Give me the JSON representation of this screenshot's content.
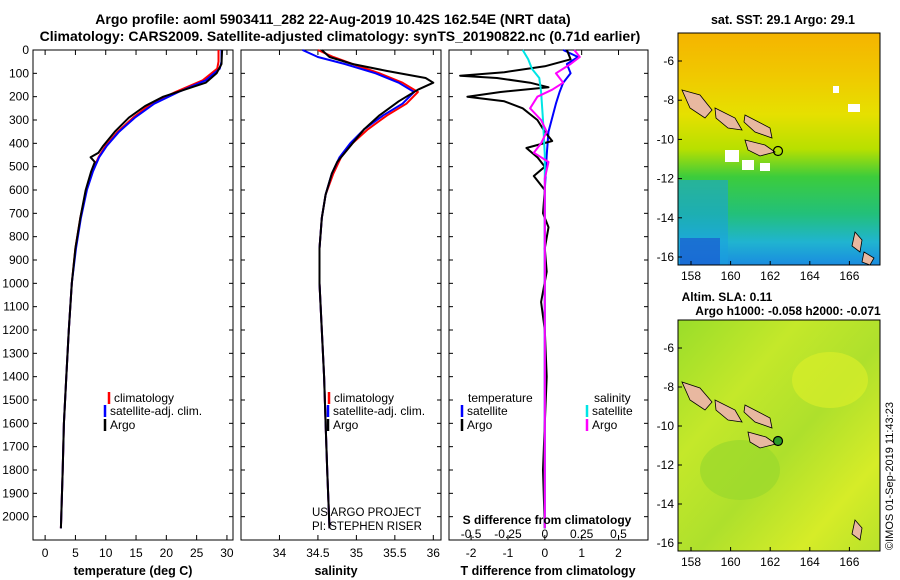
{
  "header": {
    "line1": "Argo profile: aoml 5903411_282 22-Aug-2019 10.42S 162.54E (NRT data)",
    "line2": "Climatology: CARS2009. Satellite-adjusted climatology: synTS_20190822.nc (0.71d earlier)"
  },
  "colors": {
    "climatology": "#ff0000",
    "satellite": "#0000ff",
    "argo": "#000000",
    "sat_salinity": "#00e5e5",
    "argo_salinity": "#ff00ff"
  },
  "chart_data": [
    {
      "type": "line",
      "id": "temperature",
      "xlabel": "temperature (deg C)",
      "ylabel": "",
      "xlim": [
        -2,
        31
      ],
      "ylim": [
        2100,
        0
      ],
      "xticks": [
        0,
        5,
        10,
        15,
        20,
        25,
        30
      ],
      "yticks": [
        0,
        100,
        200,
        300,
        400,
        500,
        600,
        700,
        800,
        900,
        1000,
        1100,
        1200,
        1300,
        1400,
        1500,
        1600,
        1700,
        1800,
        1900,
        2000
      ],
      "legend": [
        "climatology",
        "satellite-adj. clim.",
        "Argo"
      ],
      "legend_position": "lower-right",
      "series": [
        {
          "name": "climatology",
          "color": "#ff0000",
          "points": [
            [
              28.6,
              0
            ],
            [
              28.6,
              50
            ],
            [
              28.4,
              80
            ],
            [
              26,
              130
            ],
            [
              21.5,
              180
            ],
            [
              17.5,
              230
            ],
            [
              14.5,
              290
            ],
            [
              12,
              350
            ],
            [
              10,
              410
            ],
            [
              8.8,
              460
            ],
            [
              7.8,
              520
            ],
            [
              6.8,
              600
            ],
            [
              5.8,
              720
            ],
            [
              5,
              850
            ],
            [
              4.4,
              1000
            ],
            [
              3.9,
              1200
            ],
            [
              3.5,
              1400
            ],
            [
              3.1,
              1600
            ],
            [
              2.9,
              1800
            ],
            [
              2.6,
              2050
            ]
          ]
        },
        {
          "name": "satellite-adj. clim.",
          "color": "#0000ff",
          "points": [
            [
              29.1,
              0
            ],
            [
              29.1,
              50
            ],
            [
              28.8,
              80
            ],
            [
              26.5,
              130
            ],
            [
              22,
              180
            ],
            [
              18,
              230
            ],
            [
              14.8,
              290
            ],
            [
              12.2,
              350
            ],
            [
              10.2,
              410
            ],
            [
              8.9,
              460
            ],
            [
              7.9,
              520
            ],
            [
              6.9,
              600
            ],
            [
              5.9,
              720
            ],
            [
              5.1,
              850
            ],
            [
              4.4,
              1000
            ],
            [
              3.9,
              1200
            ],
            [
              3.5,
              1400
            ],
            [
              3.1,
              1600
            ],
            [
              2.9,
              1800
            ],
            [
              2.6,
              2050
            ]
          ]
        },
        {
          "name": "Argo",
          "color": "#000000",
          "points": [
            [
              29.2,
              0
            ],
            [
              29.1,
              60
            ],
            [
              28.3,
              100
            ],
            [
              26.5,
              140
            ],
            [
              23,
              170
            ],
            [
              19.5,
              200
            ],
            [
              16.5,
              240
            ],
            [
              13.8,
              290
            ],
            [
              11.5,
              350
            ],
            [
              9.6,
              410
            ],
            [
              8.8,
              440
            ],
            [
              7.5,
              460
            ],
            [
              8.2,
              480
            ],
            [
              7.6,
              520
            ],
            [
              6.7,
              600
            ],
            [
              5.8,
              720
            ],
            [
              5,
              850
            ],
            [
              4.4,
              1000
            ],
            [
              3.9,
              1200
            ],
            [
              3.5,
              1400
            ],
            [
              3.1,
              1600
            ],
            [
              2.9,
              1800
            ],
            [
              2.6,
              2050
            ]
          ]
        }
      ]
    },
    {
      "type": "line",
      "id": "salinity",
      "xlabel": "salinity",
      "xlim": [
        33.5,
        36.1
      ],
      "ylim": [
        2100,
        0
      ],
      "xticks": [
        34,
        34.5,
        35,
        35.5,
        36
      ],
      "xtick_labels": [
        "34",
        "34.5",
        "35",
        "35.5",
        "36"
      ],
      "legend": [
        "climatology",
        "satellite-adj. clim.",
        "Argo"
      ],
      "legend_position": "lower-right",
      "credit": [
        "US ARGO PROJECT",
        "PI: STEPHEN RISER"
      ],
      "series": [
        {
          "name": "climatology",
          "color": "#ff0000",
          "points": [
            [
              34.5,
              0
            ],
            [
              34.7,
              30
            ],
            [
              34.95,
              60
            ],
            [
              35.3,
              100
            ],
            [
              35.6,
              140
            ],
            [
              35.8,
              180
            ],
            [
              35.65,
              230
            ],
            [
              35.4,
              280
            ],
            [
              35.15,
              340
            ],
            [
              34.95,
              400
            ],
            [
              34.8,
              460
            ],
            [
              34.7,
              530
            ],
            [
              34.6,
              620
            ],
            [
              34.55,
              720
            ],
            [
              34.52,
              850
            ],
            [
              34.52,
              1000
            ],
            [
              34.55,
              1200
            ],
            [
              34.58,
              1400
            ],
            [
              34.6,
              1600
            ],
            [
              34.62,
              1800
            ],
            [
              34.65,
              2050
            ]
          ]
        },
        {
          "name": "satellite-adj. clim.",
          "color": "#0000ff",
          "points": [
            [
              34.3,
              0
            ],
            [
              34.5,
              30
            ],
            [
              34.85,
              60
            ],
            [
              35.25,
              100
            ],
            [
              35.55,
              140
            ],
            [
              35.75,
              180
            ],
            [
              35.6,
              230
            ],
            [
              35.35,
              280
            ],
            [
              35.1,
              340
            ],
            [
              34.92,
              400
            ],
            [
              34.78,
              460
            ],
            [
              34.68,
              530
            ],
            [
              34.6,
              620
            ],
            [
              34.55,
              720
            ],
            [
              34.52,
              850
            ],
            [
              34.52,
              1000
            ],
            [
              34.55,
              1200
            ],
            [
              34.58,
              1400
            ],
            [
              34.6,
              1600
            ],
            [
              34.62,
              1800
            ],
            [
              34.65,
              2050
            ]
          ]
        },
        {
          "name": "Argo",
          "color": "#000000",
          "points": [
            [
              34.55,
              0
            ],
            [
              34.65,
              30
            ],
            [
              34.95,
              60
            ],
            [
              35.4,
              90
            ],
            [
              35.9,
              120
            ],
            [
              36.0,
              140
            ],
            [
              35.8,
              170
            ],
            [
              35.55,
              220
            ],
            [
              35.3,
              280
            ],
            [
              35.1,
              340
            ],
            [
              34.95,
              400
            ],
            [
              34.85,
              440
            ],
            [
              34.75,
              480
            ],
            [
              34.68,
              530
            ],
            [
              34.6,
              620
            ],
            [
              34.55,
              720
            ],
            [
              34.52,
              850
            ],
            [
              34.52,
              1000
            ],
            [
              34.55,
              1200
            ],
            [
              34.58,
              1400
            ],
            [
              34.6,
              1600
            ],
            [
              34.62,
              1800
            ],
            [
              34.65,
              2050
            ]
          ]
        }
      ]
    },
    {
      "type": "line",
      "id": "differences",
      "xlabel": "T difference from climatology",
      "top_axis_label": "S difference from climatology",
      "xlim": [
        -2.6,
        2.8
      ],
      "ylim": [
        2100,
        0
      ],
      "xticks": [
        -2,
        -1,
        0,
        1,
        2
      ],
      "xtick_labels": [
        "-2",
        "-1",
        "0",
        "1",
        "2"
      ],
      "sticks": [
        -0.5,
        -0.25,
        0,
        0.25,
        0.5
      ],
      "stick_labels": [
        "-0.5",
        "-0.25",
        "0",
        "0.25",
        "0.5"
      ],
      "legend_left": [
        "temperature",
        "satellite",
        "Argo"
      ],
      "legend_right": [
        "salinity",
        "satellite",
        "Argo"
      ],
      "series": [
        {
          "name": "satellite",
          "color": "#0000ff",
          "points": [
            [
              0.5,
              0
            ],
            [
              0.9,
              30
            ],
            [
              0.6,
              60
            ],
            [
              0.7,
              100
            ],
            [
              0.5,
              140
            ],
            [
              0.4,
              180
            ],
            [
              0.3,
              230
            ],
            [
              0.2,
              290
            ],
            [
              0.1,
              350
            ],
            [
              0.05,
              450
            ],
            [
              0,
              600
            ],
            [
              0,
              2050
            ]
          ]
        },
        {
          "name": "Argo",
          "color": "#000000",
          "points": [
            [
              0.6,
              0
            ],
            [
              0.7,
              40
            ],
            [
              0,
              70
            ],
            [
              -1.1,
              95
            ],
            [
              -2.3,
              110
            ],
            [
              -1.3,
              120
            ],
            [
              -0.4,
              140
            ],
            [
              0.1,
              160
            ],
            [
              -1.2,
              180
            ],
            [
              -2.1,
              200
            ],
            [
              -1.1,
              220
            ],
            [
              -0.6,
              250
            ],
            [
              -0.2,
              300
            ],
            [
              0,
              350
            ],
            [
              0.2,
              390
            ],
            [
              -0.5,
              420
            ],
            [
              -0.2,
              460
            ],
            [
              0,
              500
            ],
            [
              -0.3,
              540
            ],
            [
              0,
              600
            ],
            [
              -0.05,
              700
            ],
            [
              0.1,
              760
            ],
            [
              0,
              850
            ],
            [
              0.05,
              950
            ],
            [
              -0.1,
              1080
            ],
            [
              0,
              1200
            ],
            [
              0.05,
              1400
            ],
            [
              0,
              1600
            ],
            [
              -0.05,
              1800
            ],
            [
              0,
              2050
            ]
          ]
        },
        {
          "name": "satellite (salinity)",
          "color": "#00e5e5",
          "points": [
            [
              -0.6,
              0
            ],
            [
              -0.45,
              40
            ],
            [
              -0.35,
              80
            ],
            [
              -0.15,
              120
            ],
            [
              -0.1,
              180
            ],
            [
              -0.05,
              300
            ],
            [
              0,
              450
            ],
            [
              0,
              2050
            ]
          ]
        },
        {
          "name": "Argo (salinity)",
          "color": "#ff00ff",
          "points": [
            [
              0.8,
              0
            ],
            [
              0.95,
              30
            ],
            [
              0.7,
              60
            ],
            [
              0.3,
              100
            ],
            [
              0.5,
              140
            ],
            [
              0.2,
              170
            ],
            [
              -0.2,
              200
            ],
            [
              -0.4,
              250
            ],
            [
              -0.1,
              300
            ],
            [
              0.05,
              350
            ],
            [
              -0.1,
              400
            ],
            [
              -0.3,
              440
            ],
            [
              0.1,
              480
            ],
            [
              0,
              550
            ],
            [
              0,
              2050
            ]
          ]
        }
      ]
    }
  ],
  "map_top": {
    "title": "sat. SST: 29.1 Argo: 29.1",
    "yticks": [
      "-6",
      "-8",
      "-10",
      "-12",
      "-14",
      "-16"
    ],
    "xticks": [
      "158",
      "160",
      "162",
      "164",
      "166"
    ]
  },
  "map_bottom": {
    "title1": "Altim. SLA: 0.11",
    "title2": "Argo h1000: -0.058 h2000: -0.071",
    "yticks": [
      "-6",
      "-8",
      "-10",
      "-12",
      "-14",
      "-16"
    ],
    "xticks": [
      "158",
      "160",
      "162",
      "164",
      "166"
    ]
  },
  "footer": {
    "stamp": "©IMOS 01-Sep-2019 11:43:23"
  }
}
